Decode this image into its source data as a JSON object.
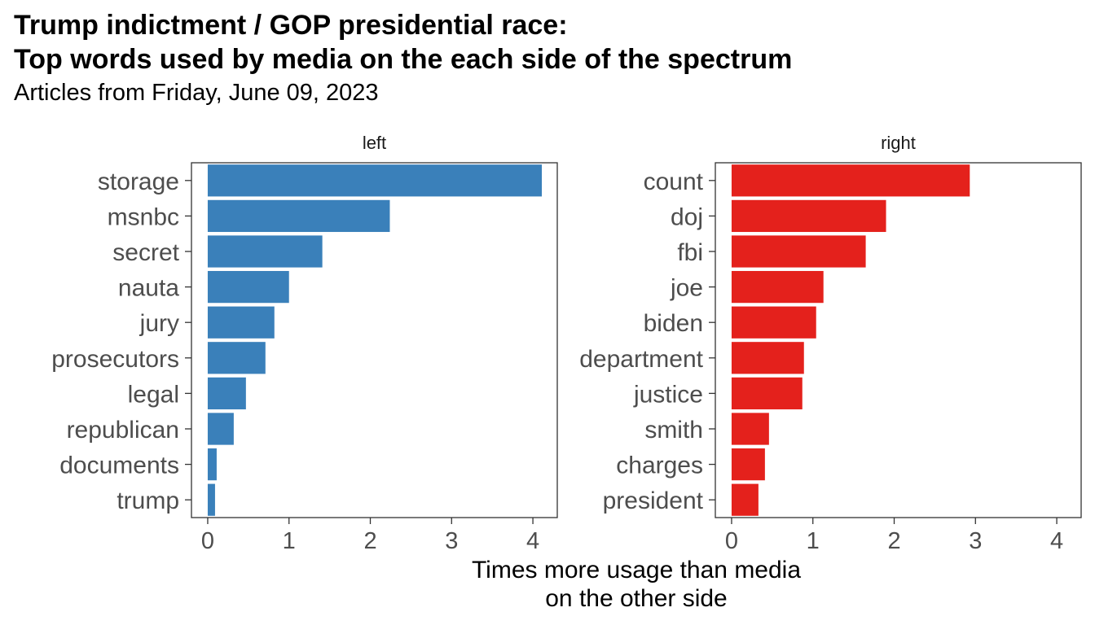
{
  "title": {
    "line1": "Trump indictment / GOP presidential race:",
    "line2": "Top words used by media on the each side of the spectrum"
  },
  "subtitle": "Articles from Friday, June 09, 2023",
  "x_axis_label": {
    "line1": "Times more usage than media",
    "line2": "on the other side"
  },
  "chart_data": [
    {
      "type": "bar",
      "orientation": "horizontal",
      "facet": "left",
      "color": "#3A80BA",
      "categories": [
        "storage",
        "msnbc",
        "secret",
        "nauta",
        "jury",
        "prosecutors",
        "legal",
        "republican",
        "documents",
        "trump"
      ],
      "values": [
        4.11,
        2.24,
        1.41,
        1.0,
        0.82,
        0.71,
        0.47,
        0.32,
        0.11,
        0.09
      ],
      "xlim": [
        -0.2,
        4.3
      ],
      "xticks": [
        0,
        1,
        2,
        3,
        4
      ],
      "grid": false
    },
    {
      "type": "bar",
      "orientation": "horizontal",
      "facet": "right",
      "color": "#E4211C",
      "categories": [
        "count",
        "doj",
        "fbi",
        "joe",
        "biden",
        "department",
        "justice",
        "smith",
        "charges",
        "president"
      ],
      "values": [
        2.93,
        1.9,
        1.65,
        1.13,
        1.04,
        0.89,
        0.87,
        0.46,
        0.41,
        0.33
      ],
      "xlim": [
        -0.2,
        4.3
      ],
      "xticks": [
        0,
        1,
        2,
        3,
        4
      ],
      "grid": false
    }
  ]
}
